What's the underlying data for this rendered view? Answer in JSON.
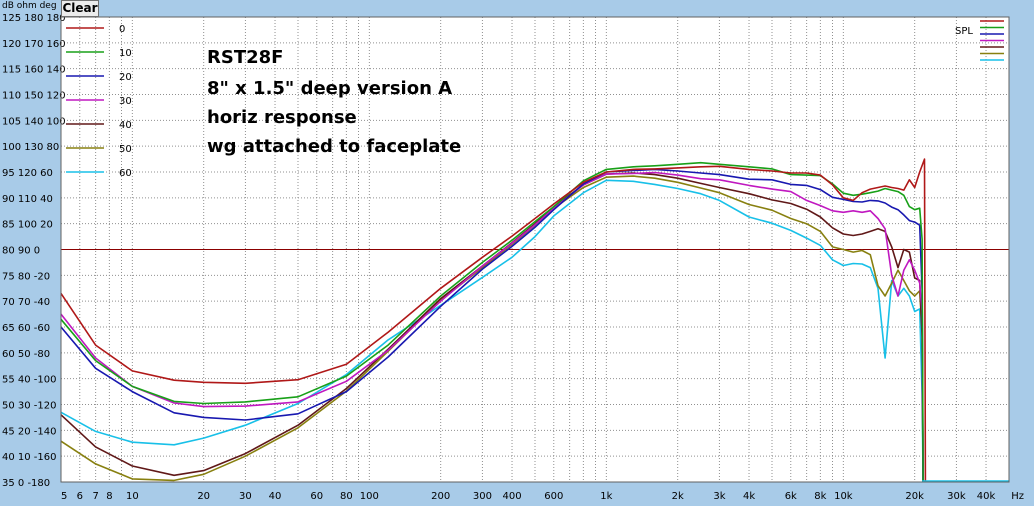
{
  "header": {
    "units_label": "dB  ohm deg",
    "clear_label": "Clear"
  },
  "annotation": {
    "lines": [
      "RST28F",
      "8\" x 1.5\" deep version A",
      "horiz response",
      "wg attached to faceplate"
    ]
  },
  "chart_data": {
    "type": "line",
    "title": "",
    "xlabel": "Hz",
    "ylabel": "dB",
    "x_scale": "log",
    "xlim": [
      5,
      50000
    ],
    "ylim": [
      35,
      125
    ],
    "grid": true,
    "legend_placement": "top-left",
    "spl_label": "SPL",
    "reference_line": {
      "y": 80,
      "color": "#8b0000"
    },
    "y_ticks": [
      {
        "db": 125,
        "label": "125 180 180"
      },
      {
        "db": 120,
        "label": "120 170 160"
      },
      {
        "db": 115,
        "label": "115 160 140"
      },
      {
        "db": 110,
        "label": "110 150 120"
      },
      {
        "db": 105,
        "label": "105 140 100"
      },
      {
        "db": 100,
        "label": "100 130 80"
      },
      {
        "db": 95,
        "label": "95  120 60"
      },
      {
        "db": 90,
        "label": "90  110 40"
      },
      {
        "db": 85,
        "label": "85  100 20"
      },
      {
        "db": 80,
        "label": "80  90  0"
      },
      {
        "db": 75,
        "label": "75  80  -20"
      },
      {
        "db": 70,
        "label": "70  70  -40"
      },
      {
        "db": 65,
        "label": "65  60  -60"
      },
      {
        "db": 60,
        "label": "60  50  -80"
      },
      {
        "db": 55,
        "label": "55  40  -100"
      },
      {
        "db": 50,
        "label": "50  30  -120"
      },
      {
        "db": 45,
        "label": "45  20  -140"
      },
      {
        "db": 40,
        "label": "40  10  -160"
      },
      {
        "db": 35,
        "label": "35  0   -180"
      }
    ],
    "x_ticks": [
      {
        "hz": 5,
        "label": "5"
      },
      {
        "hz": 6,
        "label": "6"
      },
      {
        "hz": 7,
        "label": "7"
      },
      {
        "hz": 8,
        "label": "8"
      },
      {
        "hz": 10,
        "label": "10"
      },
      {
        "hz": 20,
        "label": "20"
      },
      {
        "hz": 30,
        "label": "30"
      },
      {
        "hz": 40,
        "label": "40"
      },
      {
        "hz": 60,
        "label": "60"
      },
      {
        "hz": 80,
        "label": "80"
      },
      {
        "hz": 100,
        "label": "100"
      },
      {
        "hz": 200,
        "label": "200"
      },
      {
        "hz": 300,
        "label": "300"
      },
      {
        "hz": 400,
        "label": "400"
      },
      {
        "hz": 600,
        "label": "600"
      },
      {
        "hz": 1000,
        "label": "1k"
      },
      {
        "hz": 2000,
        "label": "2k"
      },
      {
        "hz": 3000,
        "label": "3k"
      },
      {
        "hz": 4000,
        "label": "4k"
      },
      {
        "hz": 6000,
        "label": "6k"
      },
      {
        "hz": 8000,
        "label": "8k"
      },
      {
        "hz": 10000,
        "label": "10k"
      },
      {
        "hz": 20000,
        "label": "20k"
      },
      {
        "hz": 30000,
        "label": "30k"
      },
      {
        "hz": 40000,
        "label": "40k"
      },
      {
        "hz": 50000,
        "label": "Hz"
      }
    ],
    "series": [
      {
        "name": "0",
        "color": "#b01818",
        "x": [
          5,
          7,
          10,
          15,
          20,
          30,
          50,
          80,
          120,
          200,
          300,
          400,
          500,
          600,
          800,
          1000,
          1300,
          1600,
          2000,
          2500,
          3000,
          4000,
          5000,
          6000,
          7000,
          8000,
          9000,
          10000,
          11000,
          12000,
          13000,
          14000,
          15000,
          16000,
          17000,
          18000,
          19000,
          20000,
          21000,
          22000
        ],
        "points": [
          71.5,
          61.5,
          56.5,
          54.7,
          54.3,
          54.1,
          54.8,
          57.8,
          64,
          72.5,
          78.5,
          82.6,
          86,
          88.8,
          93,
          95,
          95.5,
          95.6,
          95.8,
          96,
          96.1,
          95.5,
          95.2,
          94.8,
          94.8,
          94.4,
          92.5,
          90,
          89.5,
          91,
          91.7,
          92,
          92.3,
          92,
          91.8,
          91.5,
          93.5,
          92,
          95,
          97.5
        ]
      },
      {
        "name": "10",
        "color": "#18a018",
        "x": [
          5,
          7,
          10,
          15,
          20,
          30,
          50,
          80,
          120,
          200,
          300,
          400,
          500,
          600,
          800,
          1000,
          1300,
          1600,
          2000,
          2500,
          3000,
          4000,
          5000,
          6000,
          7000,
          8000,
          9000,
          10000,
          11000,
          12000,
          13000,
          14000,
          15000,
          16000,
          17000,
          18000,
          19000,
          20000,
          21000,
          21500
        ],
        "points": [
          66.5,
          58.5,
          53.5,
          50.6,
          50.2,
          50.5,
          51.5,
          55.5,
          61.5,
          71,
          77.5,
          81.8,
          85.4,
          88.3,
          93.3,
          95.5,
          96,
          96.2,
          96.5,
          96.8,
          96.5,
          96,
          95.6,
          94.5,
          94.4,
          94.3,
          92.7,
          90.9,
          90.5,
          90.7,
          91,
          91.3,
          91.8,
          91.5,
          91.2,
          90.5,
          88.3,
          87.7,
          88,
          82
        ]
      },
      {
        "name": "20",
        "color": "#1818b0",
        "x": [
          5,
          7,
          10,
          15,
          20,
          30,
          50,
          80,
          120,
          200,
          300,
          400,
          500,
          600,
          800,
          1000,
          1300,
          1600,
          2000,
          2500,
          3000,
          4000,
          5000,
          6000,
          7000,
          8000,
          9000,
          10000,
          11000,
          12000,
          13000,
          14000,
          15000,
          16000,
          17000,
          18000,
          19000,
          20000,
          21000,
          21500
        ],
        "points": [
          65,
          57,
          52.5,
          48.4,
          47.5,
          47,
          48.2,
          52.5,
          59.2,
          69,
          76.2,
          80.6,
          84.3,
          87.7,
          92.7,
          95,
          95.3,
          95.5,
          95.2,
          94.8,
          94.5,
          93.6,
          93.5,
          92.6,
          92.4,
          91.6,
          90.1,
          89.7,
          89.3,
          89.2,
          89.5,
          89.4,
          89,
          88.2,
          87.7,
          86.7,
          85.6,
          85.3,
          84.7,
          72
        ]
      },
      {
        "name": "30",
        "color": "#c018c0",
        "x": [
          5,
          7,
          10,
          15,
          20,
          30,
          50,
          80,
          120,
          200,
          300,
          400,
          500,
          600,
          800,
          1000,
          1300,
          1600,
          2000,
          2500,
          3000,
          4000,
          5000,
          6000,
          7000,
          8000,
          9000,
          10000,
          11000,
          12000,
          13000,
          14000,
          15000,
          16000,
          17000,
          18000,
          19000,
          20000,
          21000,
          21500
        ],
        "points": [
          67.5,
          59,
          53.5,
          50.3,
          49.6,
          49.7,
          50.5,
          54.5,
          60.5,
          70,
          76.8,
          81.2,
          84.8,
          88,
          92.5,
          94.6,
          94.7,
          94.9,
          94.4,
          93.7,
          93.5,
          92.4,
          91.7,
          91.2,
          89.5,
          88.5,
          87.5,
          87.2,
          87.5,
          87.2,
          87.5,
          86,
          84,
          75,
          71,
          76,
          78,
          76,
          73.5,
          68
        ]
      },
      {
        "name": "40",
        "color": "#601818",
        "x": [
          5,
          7,
          10,
          15,
          20,
          30,
          50,
          80,
          120,
          200,
          300,
          400,
          500,
          600,
          800,
          1000,
          1300,
          1600,
          2000,
          2500,
          3000,
          4000,
          5000,
          6000,
          7000,
          8000,
          9000,
          10000,
          11000,
          12000,
          13000,
          14000,
          15000,
          16000,
          17000,
          18000,
          19000,
          20000,
          21000,
          21500
        ],
        "points": [
          48,
          41.8,
          38.1,
          36.3,
          37.2,
          40.5,
          46,
          53.1,
          60.7,
          70.5,
          76.8,
          81.3,
          85,
          88.3,
          92.5,
          94.6,
          94.8,
          94.5,
          93.8,
          92.8,
          92,
          90.8,
          89.6,
          88.9,
          87.8,
          86.3,
          84.2,
          83,
          82.7,
          83,
          83.5,
          84,
          83.5,
          80.5,
          76.5,
          80,
          79.5,
          74.5,
          74,
          63
        ]
      },
      {
        "name": "50",
        "color": "#888010",
        "x": [
          5,
          7,
          10,
          15,
          20,
          30,
          50,
          80,
          120,
          200,
          300,
          400,
          500,
          600,
          800,
          1000,
          1300,
          1600,
          2000,
          2500,
          3000,
          4000,
          5000,
          6000,
          7000,
          8000,
          9000,
          10000,
          11000,
          12000,
          13000,
          14000,
          15000,
          16000,
          17000,
          18000,
          19000,
          20000,
          21000,
          21500
        ],
        "points": [
          42.9,
          38.5,
          35.6,
          35.3,
          36.5,
          40,
          45.5,
          52.6,
          60.3,
          70.2,
          76.5,
          81,
          84.7,
          88,
          92,
          94,
          94.2,
          93.8,
          93,
          91.9,
          91,
          88.7,
          87.6,
          86,
          85,
          83.5,
          80.5,
          80,
          79.5,
          79.8,
          79,
          73,
          71,
          73.5,
          76,
          74,
          72,
          71,
          72,
          64
        ]
      },
      {
        "name": "60",
        "color": "#18c0e8",
        "x": [
          5,
          7,
          10,
          15,
          20,
          30,
          50,
          80,
          120,
          200,
          300,
          400,
          500,
          600,
          800,
          1000,
          1300,
          1600,
          2000,
          2500,
          3000,
          4000,
          5000,
          6000,
          7000,
          8000,
          9000,
          10000,
          11000,
          12000,
          13000,
          14000,
          15000,
          16000,
          17000,
          18000,
          19000,
          20000,
          21000,
          21500
        ],
        "points": [
          48.5,
          44.8,
          42.7,
          42.2,
          43.5,
          46,
          50.2,
          55.8,
          62.5,
          69.2,
          74.6,
          78.5,
          82.5,
          86.5,
          91,
          93.4,
          93.2,
          92.6,
          91.8,
          90.8,
          89.5,
          86.3,
          85.1,
          83.7,
          82.2,
          80.8,
          78,
          76.9,
          77.3,
          77.2,
          76.5,
          72.5,
          59,
          74,
          71,
          72.5,
          71,
          68,
          68.5,
          52
        ]
      }
    ]
  }
}
